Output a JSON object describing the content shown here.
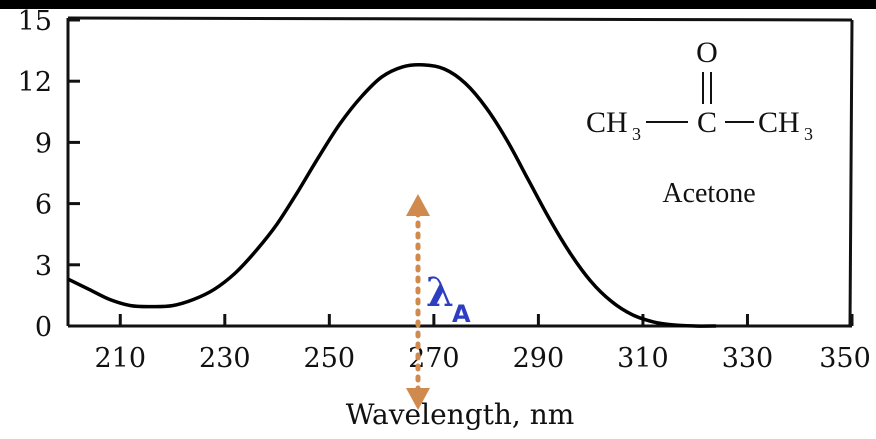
{
  "chart_data": {
    "type": "line",
    "xlabel": "Wavelength, nm",
    "ylabel": "",
    "title": "",
    "xlim": [
      200,
      350
    ],
    "ylim": [
      0,
      15
    ],
    "x_ticks": [
      "210",
      "230",
      "250",
      "270",
      "290",
      "310",
      "330",
      "350"
    ],
    "y_ticks": [
      "0",
      "3",
      "6",
      "9",
      "12",
      "15"
    ],
    "grid": false,
    "series": [
      {
        "color": "#000000",
        "x": [
          200,
          204,
          208,
          212,
          216,
          220,
          224,
          228,
          232,
          236,
          240,
          244,
          248,
          252,
          256,
          260,
          264,
          268,
          272,
          276,
          280,
          284,
          288,
          292,
          296,
          300,
          304,
          308,
          312,
          316,
          320,
          324
        ],
        "y": [
          2.3,
          1.8,
          1.3,
          1.0,
          0.95,
          1.0,
          1.3,
          1.8,
          2.6,
          3.7,
          5.0,
          6.6,
          8.3,
          9.9,
          11.2,
          12.2,
          12.7,
          12.8,
          12.6,
          11.9,
          10.7,
          9.1,
          7.2,
          5.3,
          3.6,
          2.2,
          1.2,
          0.55,
          0.2,
          0.05,
          0.0,
          0.0
        ]
      }
    ]
  },
  "molecule": {
    "oxygen": "O",
    "left_group": "CH",
    "left_sub": "3",
    "center": "C",
    "right_group": "CH",
    "right_sub": "3",
    "name": "Acetone"
  },
  "annotation": {
    "symbol": "λ",
    "subscript": "A",
    "arrow_color": "#d08a4e",
    "label_color": "#2d3ec0"
  }
}
